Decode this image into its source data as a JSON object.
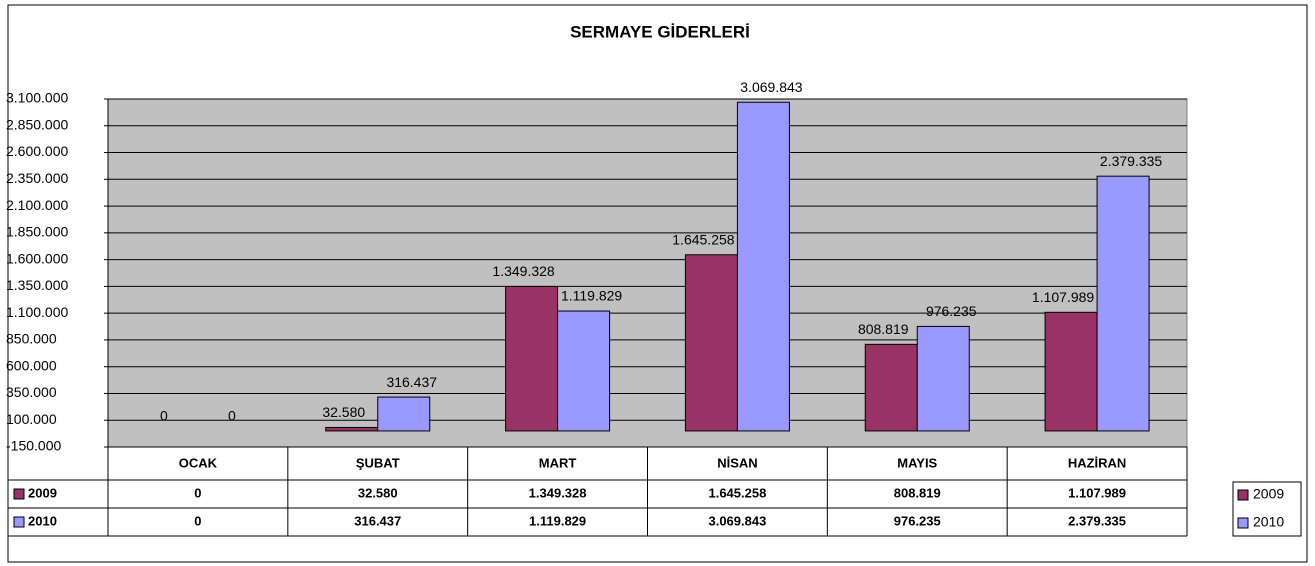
{
  "chart_data": {
    "type": "bar",
    "title": "SERMAYE GİDERLERİ",
    "categories": [
      "OCAK",
      "ŞUBAT",
      "MART",
      "NİSAN",
      "MAYIS",
      "HAZİRAN"
    ],
    "series": [
      {
        "name": "2009",
        "color": "#993366",
        "values": [
          0,
          32580,
          1349328,
          1645258,
          808819,
          1107989
        ],
        "value_labels": [
          "0",
          "32.580",
          "1.349.328",
          "1.645.258",
          "808.819",
          "1.107.989"
        ]
      },
      {
        "name": "2010",
        "color": "#9999ff",
        "values": [
          0,
          316437,
          1119829,
          3069843,
          976235,
          2379335
        ],
        "value_labels": [
          "0",
          "316.437",
          "1.119.829",
          "3.069.843",
          "976.235",
          "2.379.335"
        ]
      }
    ],
    "ylim": [
      -150000,
      3100000
    ],
    "yticks": [
      {
        "value": -150000,
        "label": "-150.000"
      },
      {
        "value": 100000,
        "label": "100.000"
      },
      {
        "value": 350000,
        "label": "350.000"
      },
      {
        "value": 600000,
        "label": "600.000"
      },
      {
        "value": 850000,
        "label": "850.000"
      },
      {
        "value": 1100000,
        "label": "1.100.000"
      },
      {
        "value": 1350000,
        "label": "1.350.000"
      },
      {
        "value": 1600000,
        "label": "1.600.000"
      },
      {
        "value": 1850000,
        "label": "1.850.000"
      },
      {
        "value": 2100000,
        "label": "2.100.000"
      },
      {
        "value": 2350000,
        "label": "2.350.000"
      },
      {
        "value": 2600000,
        "label": "2.600.000"
      },
      {
        "value": 2850000,
        "label": "2.850.000"
      },
      {
        "value": 3100000,
        "label": "3.100.000"
      }
    ],
    "grid": true,
    "legend": "right",
    "data_table": true
  }
}
